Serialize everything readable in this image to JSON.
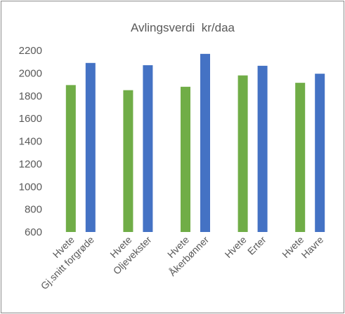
{
  "chart_data": {
    "type": "bar",
    "title": "Avlingsverdi  kr/daa",
    "xlabel": "",
    "ylabel": "",
    "ylim": [
      600,
      2200
    ],
    "yticks": [
      600,
      800,
      1000,
      1200,
      1400,
      1600,
      1800,
      2000,
      2200
    ],
    "grid": false,
    "legend": "none",
    "categories": [
      {
        "labels": [
          "Hvete",
          "Gj.snitt forgrøde"
        ],
        "values": [
          1895,
          2090
        ]
      },
      {
        "labels": [
          "Hvete",
          "Oljevekster"
        ],
        "values": [
          1850,
          2070
        ]
      },
      {
        "labels": [
          "Hvete",
          "Åkerbønner"
        ],
        "values": [
          1880,
          2170
        ]
      },
      {
        "labels": [
          "Hvete",
          "Erter"
        ],
        "values": [
          1980,
          2065
        ]
      },
      {
        "labels": [
          "Hvete",
          "Havre"
        ],
        "values": [
          1915,
          1995
        ]
      }
    ],
    "colors": [
      "#70ad47",
      "#4472c4"
    ]
  }
}
